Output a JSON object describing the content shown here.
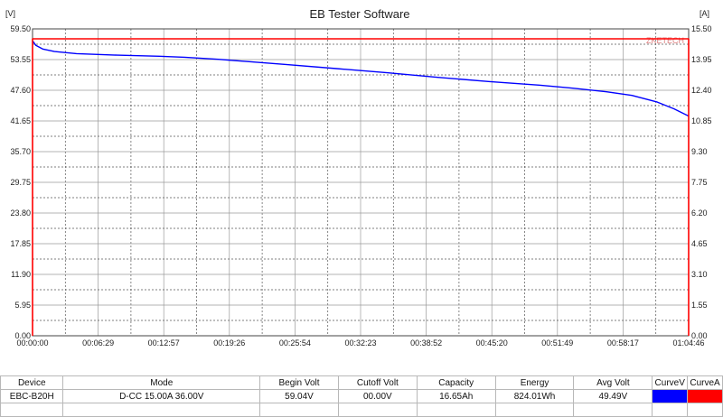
{
  "window_title": "EB Tester Software",
  "chart_data": {
    "type": "line",
    "title": "EB Tester Software",
    "left_unit": "[V]",
    "right_unit": "[A]",
    "x_tick_labels": [
      "00:00:00",
      "00:06:29",
      "00:12:57",
      "00:19:26",
      "00:25:54",
      "00:32:23",
      "00:38:52",
      "00:45:20",
      "00:51:49",
      "00:58:17",
      "01:04:46"
    ],
    "x_range_seconds": [
      0,
      3886
    ],
    "left_ticks": [
      "0.00",
      "5.95",
      "11.90",
      "17.85",
      "23.80",
      "29.75",
      "35.70",
      "41.65",
      "47.60",
      "53.55",
      "59.50"
    ],
    "right_ticks": [
      "0.00",
      "1.55",
      "3.10",
      "4.65",
      "6.20",
      "7.75",
      "9.30",
      "10.85",
      "12.40",
      "13.95",
      "15.50"
    ],
    "ylim_left": [
      0,
      59.5
    ],
    "ylim_right": [
      0,
      15.5
    ],
    "grid": true,
    "watermark": "ZKETECH",
    "series": [
      {
        "name": "CurveV",
        "axis": "left",
        "color": "#0000ff",
        "points": [
          [
            0,
            57.2
          ],
          [
            20,
            56.3
          ],
          [
            60,
            55.6
          ],
          [
            130,
            55.1
          ],
          [
            260,
            54.7
          ],
          [
            500,
            54.4
          ],
          [
            750,
            54.2
          ],
          [
            900,
            54.0
          ],
          [
            1100,
            53.6
          ],
          [
            1300,
            53.1
          ],
          [
            1500,
            52.6
          ],
          [
            1800,
            51.8
          ],
          [
            2100,
            51.0
          ],
          [
            2400,
            50.1
          ],
          [
            2700,
            49.3
          ],
          [
            3000,
            48.6
          ],
          [
            3200,
            48.0
          ],
          [
            3400,
            47.3
          ],
          [
            3550,
            46.6
          ],
          [
            3700,
            45.3
          ],
          [
            3800,
            44.0
          ],
          [
            3886,
            42.6
          ]
        ]
      },
      {
        "name": "CurveA",
        "axis": "right",
        "color": "#ff0000",
        "points": [
          [
            0,
            0
          ],
          [
            0,
            15.0
          ],
          [
            3886,
            15.0
          ],
          [
            3886,
            0
          ]
        ]
      }
    ]
  },
  "table": {
    "headers": [
      "Device",
      "Mode",
      "Begin Volt",
      "Cutoff Volt",
      "Capacity",
      "Energy",
      "Avg Volt",
      "CurveV",
      "CurveA"
    ],
    "row": {
      "device": "EBC-B20H",
      "mode": "D-CC 15.00A 36.00V",
      "begin_volt": "59.04V",
      "cutoff_volt": "00.00V",
      "capacity": "16.65Ah",
      "energy": "824.01Wh",
      "avg_volt": "49.49V"
    }
  }
}
